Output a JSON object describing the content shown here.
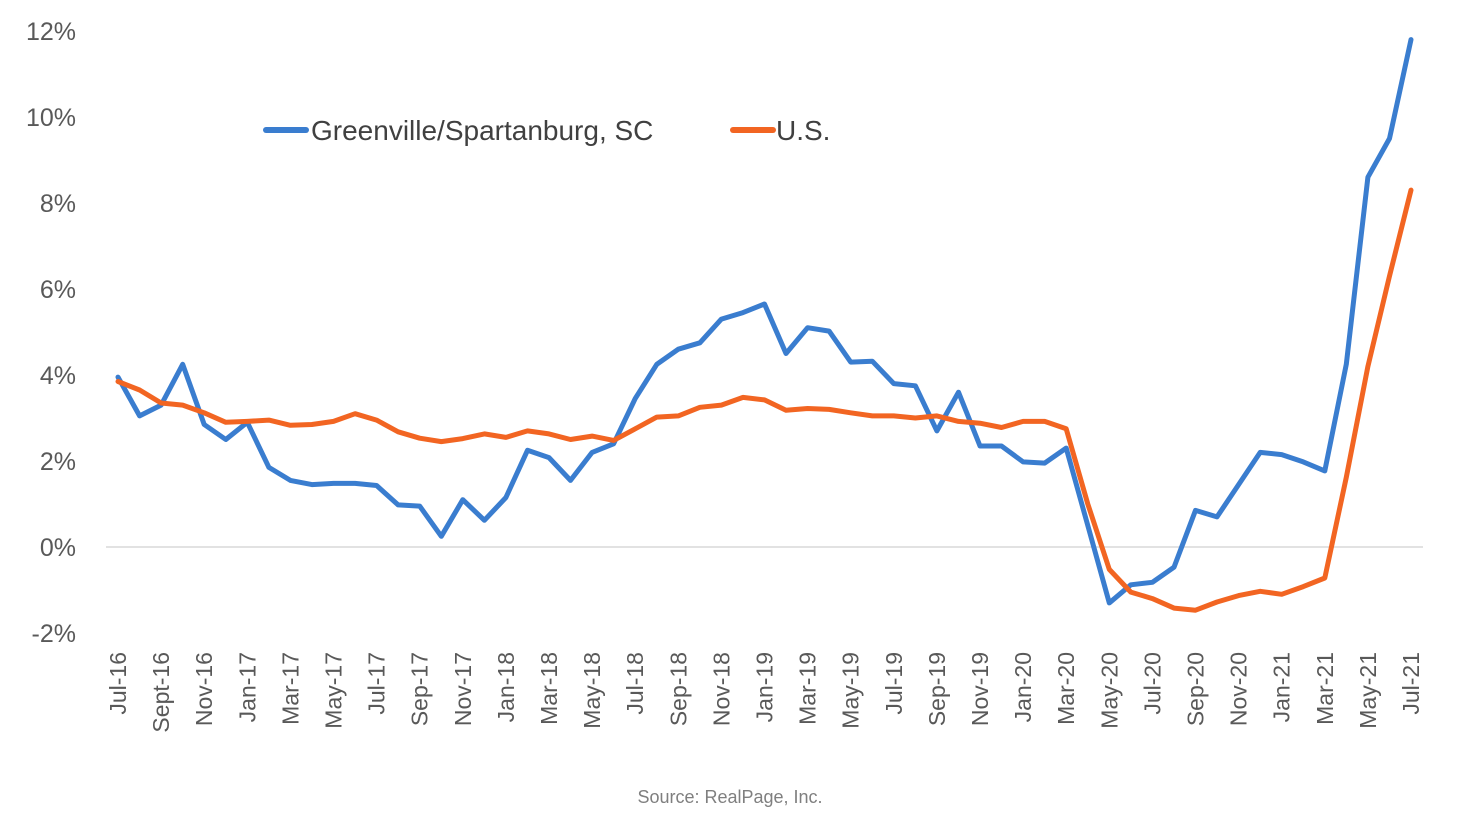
{
  "chart_data": {
    "type": "line",
    "title": "",
    "xlabel": "",
    "ylabel": "",
    "ylim": [
      -2,
      12
    ],
    "y_ticks": [
      "-2%",
      "0%",
      "2%",
      "4%",
      "6%",
      "8%",
      "10%",
      "12%"
    ],
    "y_tick_values": [
      -2,
      0,
      2,
      4,
      6,
      8,
      10,
      12
    ],
    "grid": false,
    "zero_line": true,
    "legend": "top-left",
    "x": [
      "Jul-16",
      "Aug-16",
      "Sept-16",
      "Oct-16",
      "Nov-16",
      "Dec-16",
      "Jan-17",
      "Feb-17",
      "Mar-17",
      "Apr-17",
      "May-17",
      "Jun-17",
      "Jul-17",
      "Aug-17",
      "Sep-17",
      "Oct-17",
      "Nov-17",
      "Dec-17",
      "Jan-18",
      "Feb-18",
      "Mar-18",
      "Apr-18",
      "May-18",
      "Jun-18",
      "Jul-18",
      "Aug-18",
      "Sep-18",
      "Oct-18",
      "Nov-18",
      "Dec-18",
      "Jan-19",
      "Feb-19",
      "Mar-19",
      "Apr-19",
      "May-19",
      "Jun-19",
      "Jul-19",
      "Aug-19",
      "Sep-19",
      "Oct-19",
      "Nov-19",
      "Dec-19",
      "Jan-20",
      "Feb-20",
      "Mar-20",
      "Apr-20",
      "May-20",
      "Jun-20",
      "Jul-20",
      "Aug-20",
      "Sep-20",
      "Oct-20",
      "Nov-20",
      "Dec-20",
      "Jan-21",
      "Feb-21",
      "Mar-21",
      "Apr-21",
      "May-21",
      "Jun-21",
      "Jul-21"
    ],
    "x_tick_labels": [
      "Jul-16",
      "Sept-16",
      "Nov-16",
      "Jan-17",
      "Mar-17",
      "May-17",
      "Jul-17",
      "Sep-17",
      "Nov-17",
      "Jan-18",
      "Mar-18",
      "May-18",
      "Jul-18",
      "Sep-18",
      "Nov-18",
      "Jan-19",
      "Mar-19",
      "May-19",
      "Jul-19",
      "Sep-19",
      "Nov-19",
      "Jan-20",
      "Mar-20",
      "May-20",
      "Jul-20",
      "Sep-20",
      "Nov-20",
      "Jan-21",
      "Mar-21",
      "May-21",
      "Jul-21"
    ],
    "series": [
      {
        "name": "Greenville/Spartanburg, SC",
        "color": "#3a7dcf",
        "values": [
          3.95,
          3.05,
          3.3,
          4.25,
          2.85,
          2.5,
          2.9,
          1.85,
          1.55,
          1.45,
          1.48,
          1.48,
          1.43,
          0.98,
          0.95,
          0.25,
          1.1,
          0.62,
          1.15,
          2.25,
          2.08,
          1.55,
          2.2,
          2.4,
          3.45,
          4.25,
          4.6,
          4.75,
          5.3,
          5.45,
          5.65,
          4.5,
          5.1,
          5.02,
          4.3,
          4.32,
          3.8,
          3.75,
          2.7,
          3.6,
          2.35,
          2.35,
          1.98,
          1.95,
          2.3,
          0.5,
          -1.3,
          -0.88,
          -0.82,
          -0.47,
          0.85,
          0.7,
          1.45,
          2.2,
          2.15,
          1.98,
          1.77,
          4.25,
          8.6,
          9.5,
          11.8
        ]
      },
      {
        "name": "U.S.",
        "color": "#f26522",
        "values": [
          3.85,
          3.65,
          3.35,
          3.3,
          3.12,
          2.9,
          2.92,
          2.95,
          2.83,
          2.85,
          2.92,
          3.1,
          2.95,
          2.68,
          2.53,
          2.45,
          2.52,
          2.63,
          2.55,
          2.7,
          2.63,
          2.5,
          2.58,
          2.48,
          2.75,
          3.02,
          3.05,
          3.25,
          3.3,
          3.48,
          3.42,
          3.18,
          3.22,
          3.2,
          3.12,
          3.05,
          3.05,
          3.0,
          3.05,
          2.92,
          2.88,
          2.78,
          2.92,
          2.92,
          2.75,
          1.0,
          -0.52,
          -1.05,
          -1.2,
          -1.42,
          -1.47,
          -1.28,
          -1.13,
          -1.03,
          -1.1,
          -0.92,
          -0.72,
          1.62,
          4.2,
          6.3,
          8.3
        ]
      }
    ],
    "source": "Source: RealPage, Inc."
  }
}
